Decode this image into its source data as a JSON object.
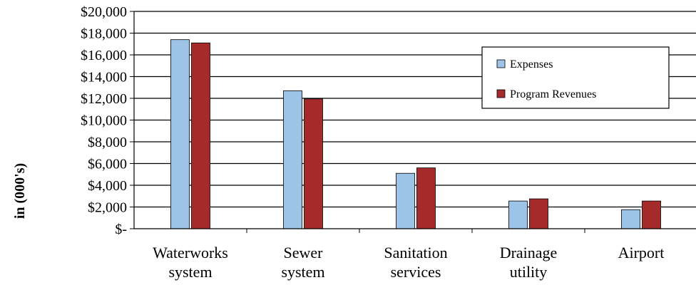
{
  "chart_data": {
    "type": "bar",
    "categories": [
      [
        "Waterworks",
        "system"
      ],
      [
        "Sewer",
        "system"
      ],
      [
        "Sanitation",
        "services"
      ],
      [
        "Drainage",
        "utility"
      ],
      [
        "Airport"
      ]
    ],
    "series": [
      {
        "name": "Expenses",
        "color": "#9dc3e6",
        "values": [
          17400,
          12700,
          5100,
          2550,
          1750
        ]
      },
      {
        "name": "Program Revenues",
        "color": "#a52a2a",
        "values": [
          17100,
          11950,
          5600,
          2750,
          2550
        ]
      }
    ],
    "ylabel": "in (000's)",
    "ylim": [
      0,
      20000
    ],
    "y_ticks": [
      0,
      2000,
      4000,
      6000,
      8000,
      10000,
      12000,
      14000,
      16000,
      18000,
      20000
    ],
    "y_tick_labels": [
      "$-",
      "$2,000",
      "$4,000",
      "$6,000",
      "$8,000",
      "$10,000",
      "$12,000",
      "$14,000",
      "$16,000",
      "$18,000",
      "$20,000"
    ],
    "grid": true,
    "legend_position": "top-right"
  }
}
